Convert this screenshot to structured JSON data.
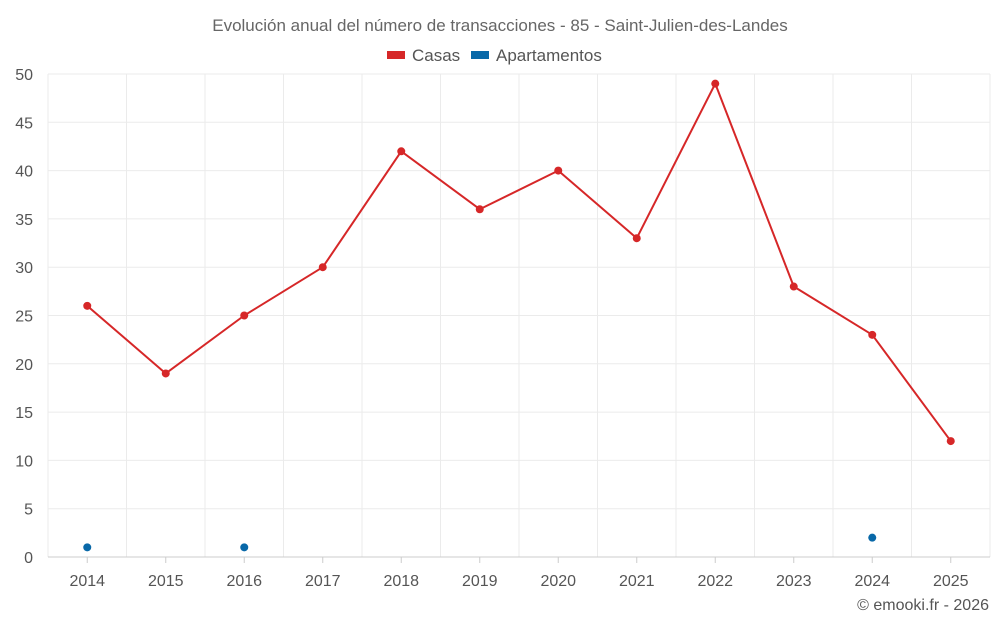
{
  "chart_data": {
    "type": "line",
    "title": "Evolución anual del número de transacciones - 85 - Saint-Julien-des-Landes",
    "categories": [
      "2014",
      "2015",
      "2016",
      "2017",
      "2018",
      "2019",
      "2020",
      "2021",
      "2022",
      "2023",
      "2024",
      "2025"
    ],
    "series": [
      {
        "name": "Casas",
        "color": "#d62728",
        "values": [
          26,
          19,
          25,
          30,
          42,
          36,
          40,
          33,
          49,
          28,
          23,
          12
        ]
      },
      {
        "name": "Apartamentos",
        "color": "#0868a8",
        "values": [
          1,
          null,
          1,
          null,
          null,
          null,
          null,
          null,
          null,
          null,
          2,
          null
        ]
      }
    ],
    "yticks": [
      "0",
      "5",
      "10",
      "15",
      "20",
      "25",
      "30",
      "35",
      "40",
      "45",
      "50"
    ],
    "ylim": [
      0,
      50
    ],
    "xlabel": "",
    "ylabel": "",
    "grid": true,
    "legend": "top-center",
    "credit": "© emooki.fr - 2026"
  }
}
